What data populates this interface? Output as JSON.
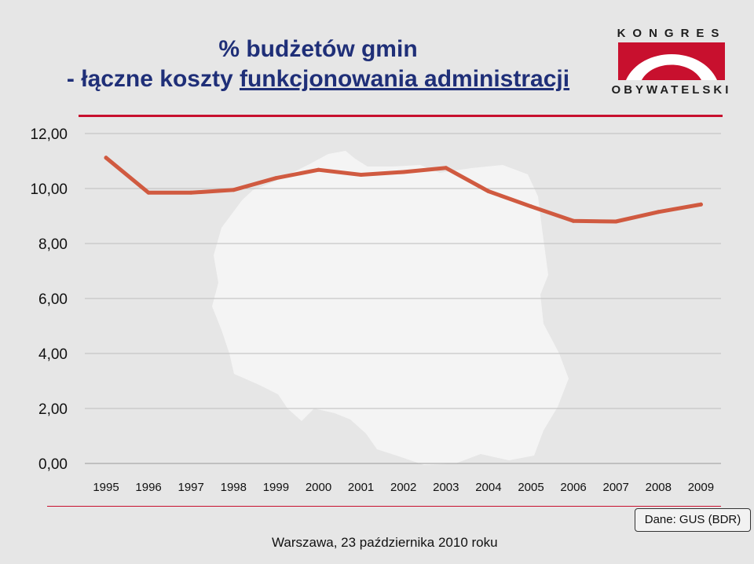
{
  "slide": {
    "title_line1": "% budżetów gmin",
    "title_line2_prefix": "- łączne koszty ",
    "title_line2_underlined": "funkcjonowania administracji",
    "footer": "Warszawa, 23 października 2010 roku",
    "source": "Dane: GUS (BDR)"
  },
  "logo": {
    "top_text": "KONGRES",
    "bottom_text": "OBYWATELSKI",
    "accent_color": "#c8102e"
  },
  "chart_data": {
    "type": "line",
    "categories": [
      "1995",
      "1996",
      "1997",
      "1998",
      "1999",
      "2000",
      "2001",
      "2002",
      "2003",
      "2004",
      "2005",
      "2006",
      "2007",
      "2008",
      "2009"
    ],
    "series": [
      {
        "values": [
          11.12,
          9.85,
          9.85,
          9.95,
          10.38,
          10.68,
          10.5,
          10.6,
          10.75,
          9.9,
          9.35,
          8.82,
          8.8,
          9.15,
          9.42
        ]
      }
    ],
    "y_ticks": [
      "0,00",
      "2,00",
      "4,00",
      "6,00",
      "8,00",
      "10,00",
      "12,00"
    ],
    "ylim": [
      0,
      12
    ],
    "grid": true,
    "line_color": "#d05a40"
  }
}
